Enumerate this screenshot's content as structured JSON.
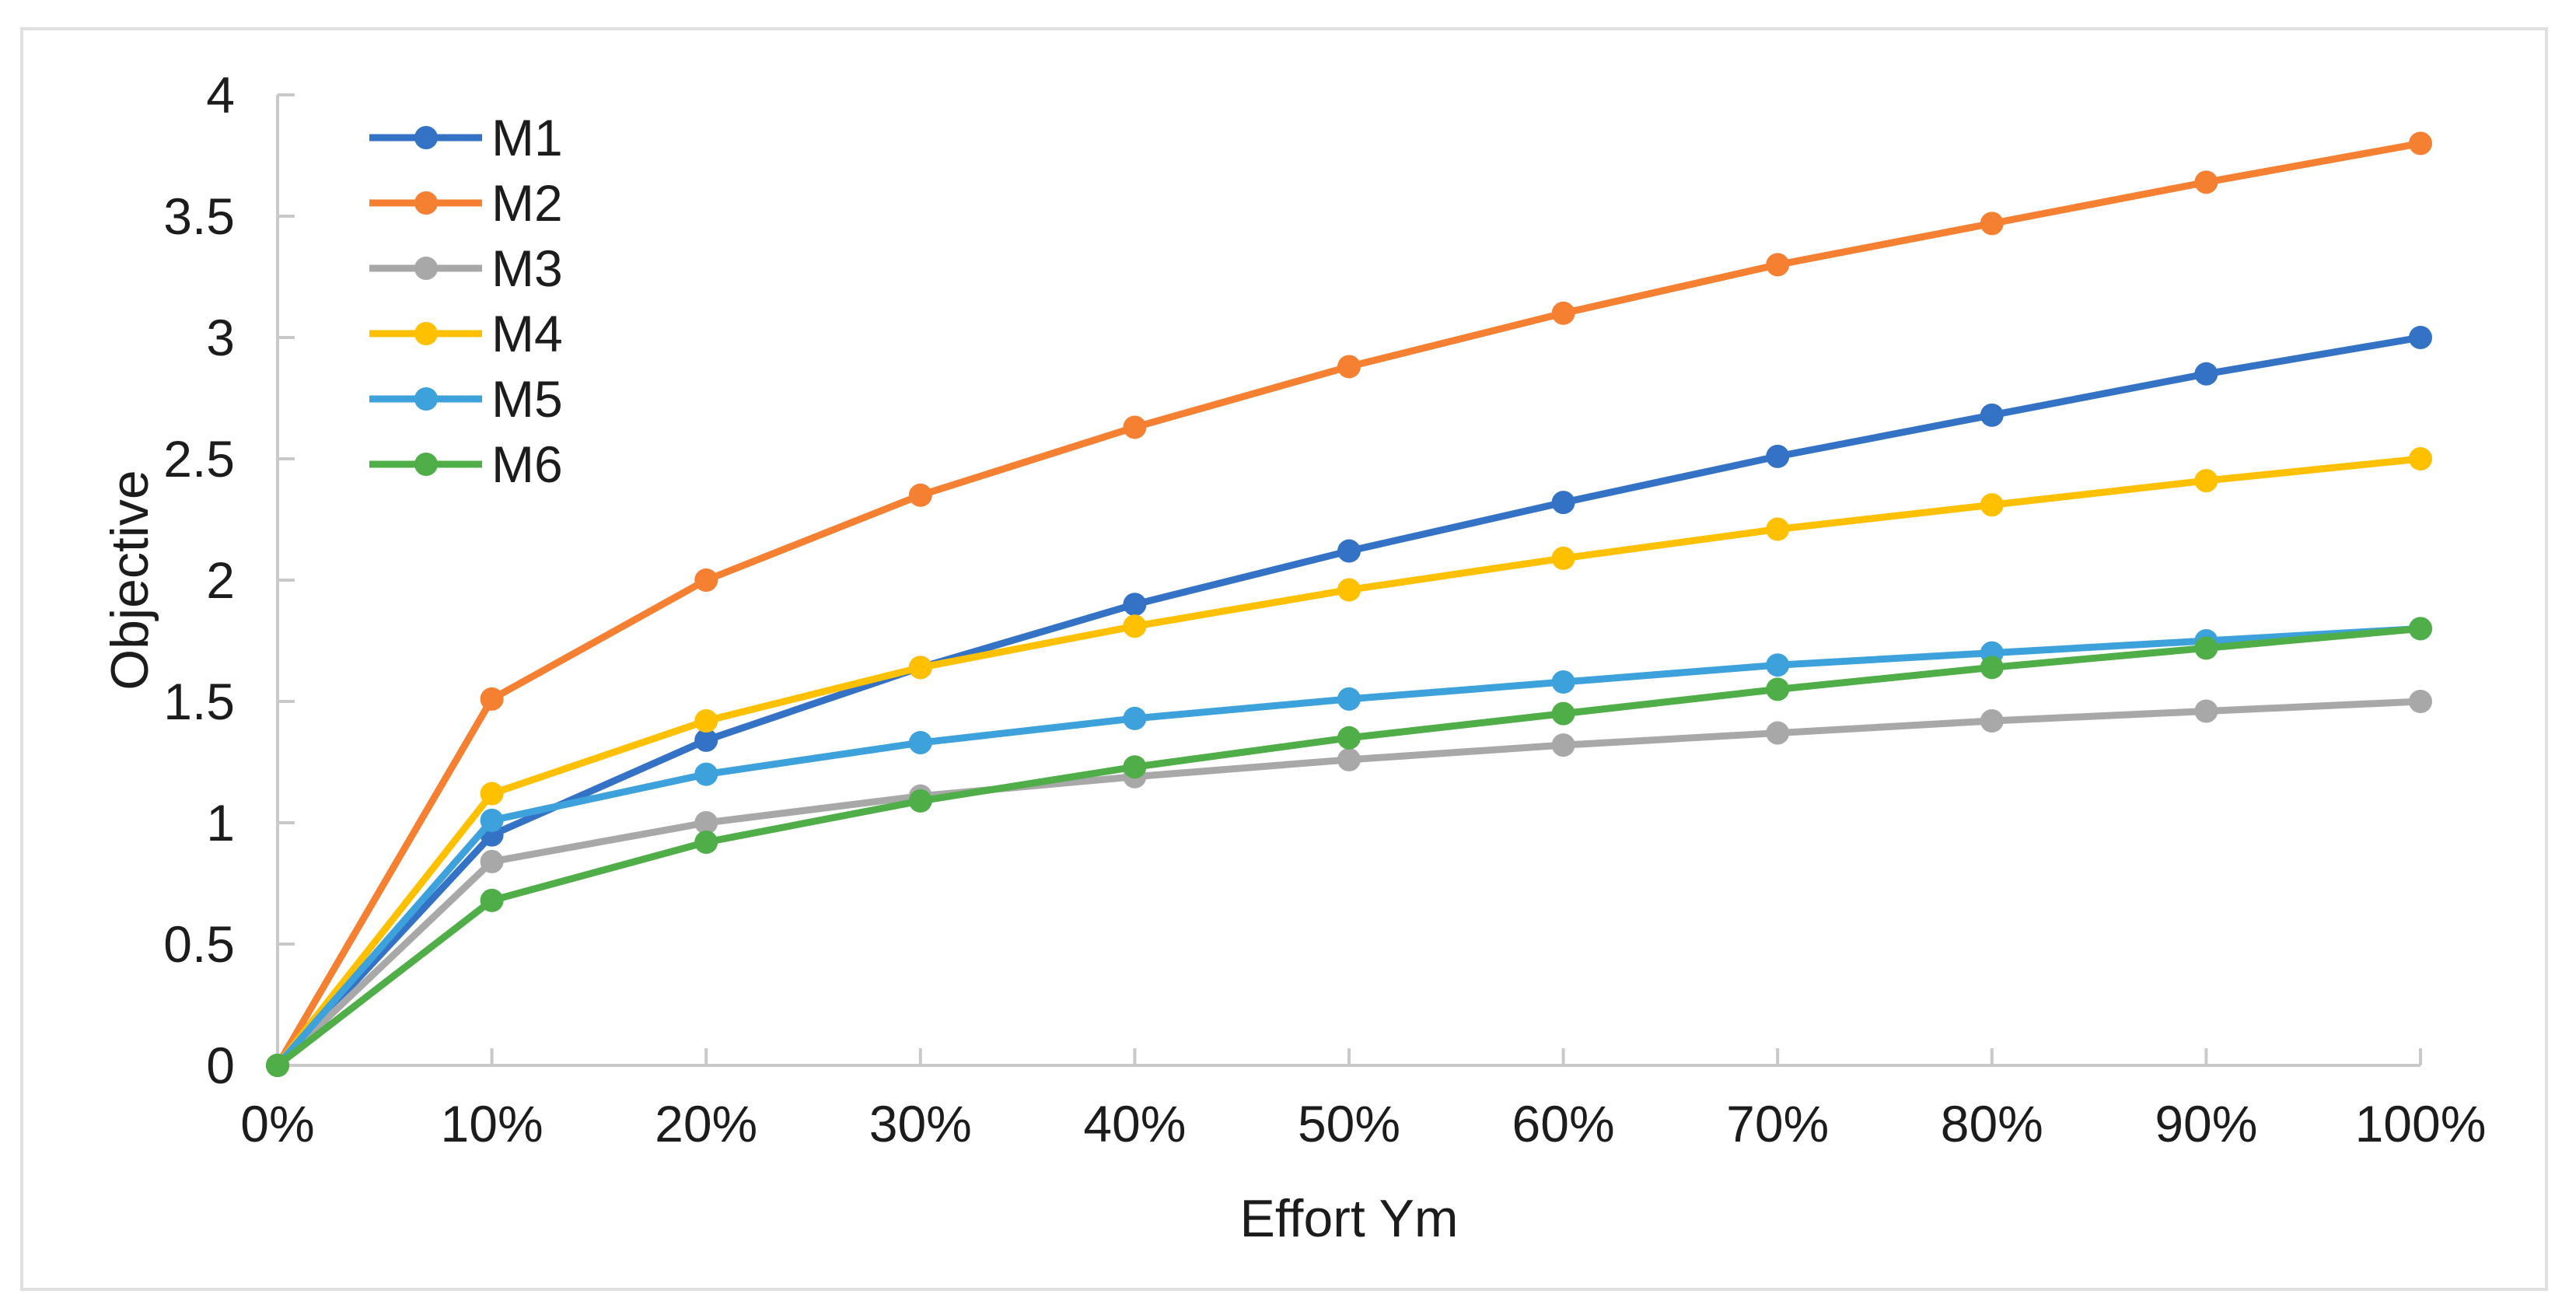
{
  "figure": {
    "background": "#ffffff",
    "border_color": "#e0e0e0"
  },
  "chart_data": {
    "type": "line",
    "title": "",
    "xlabel": "Effort Ym",
    "ylabel": "Objective",
    "x_tick_labels": [
      "0%",
      "10%",
      "20%",
      "30%",
      "40%",
      "50%",
      "60%",
      "70%",
      "80%",
      "90%",
      "100%"
    ],
    "x_percent": [
      0,
      10,
      20,
      30,
      40,
      50,
      60,
      70,
      80,
      90,
      100
    ],
    "y_tick_labels": [
      "0",
      "0.5",
      "1",
      "1.5",
      "2",
      "2.5",
      "3",
      "3.5",
      "4"
    ],
    "y_ticks": [
      0,
      0.5,
      1,
      1.5,
      2,
      2.5,
      3,
      3.5,
      4
    ],
    "ylim": [
      0,
      4
    ],
    "grid": false,
    "legend_position": "top-left-inside",
    "axis_color": "#c9c9c9",
    "text_color": "#1c1c1c",
    "series": [
      {
        "name": "M1",
        "color": "#3472c6",
        "values": [
          0,
          0.95,
          1.34,
          1.64,
          1.9,
          2.12,
          2.32,
          2.51,
          2.68,
          2.85,
          3.0
        ]
      },
      {
        "name": "M2",
        "color": "#f58032",
        "values": [
          0,
          1.51,
          2.0,
          2.35,
          2.63,
          2.88,
          3.1,
          3.3,
          3.47,
          3.64,
          3.8
        ]
      },
      {
        "name": "M3",
        "color": "#a8a8a8",
        "values": [
          0,
          0.84,
          1.0,
          1.11,
          1.19,
          1.26,
          1.32,
          1.37,
          1.42,
          1.46,
          1.5
        ]
      },
      {
        "name": "M4",
        "color": "#ffc000",
        "values": [
          0,
          1.12,
          1.42,
          1.64,
          1.81,
          1.96,
          2.09,
          2.21,
          2.31,
          2.41,
          2.5
        ]
      },
      {
        "name": "M5",
        "color": "#3da1dc",
        "values": [
          0,
          1.01,
          1.2,
          1.33,
          1.43,
          1.51,
          1.58,
          1.65,
          1.7,
          1.75,
          1.8
        ]
      },
      {
        "name": "M6",
        "color": "#4fae47",
        "values": [
          0,
          0.68,
          0.92,
          1.09,
          1.23,
          1.35,
          1.45,
          1.55,
          1.64,
          1.72,
          1.8
        ]
      }
    ]
  }
}
